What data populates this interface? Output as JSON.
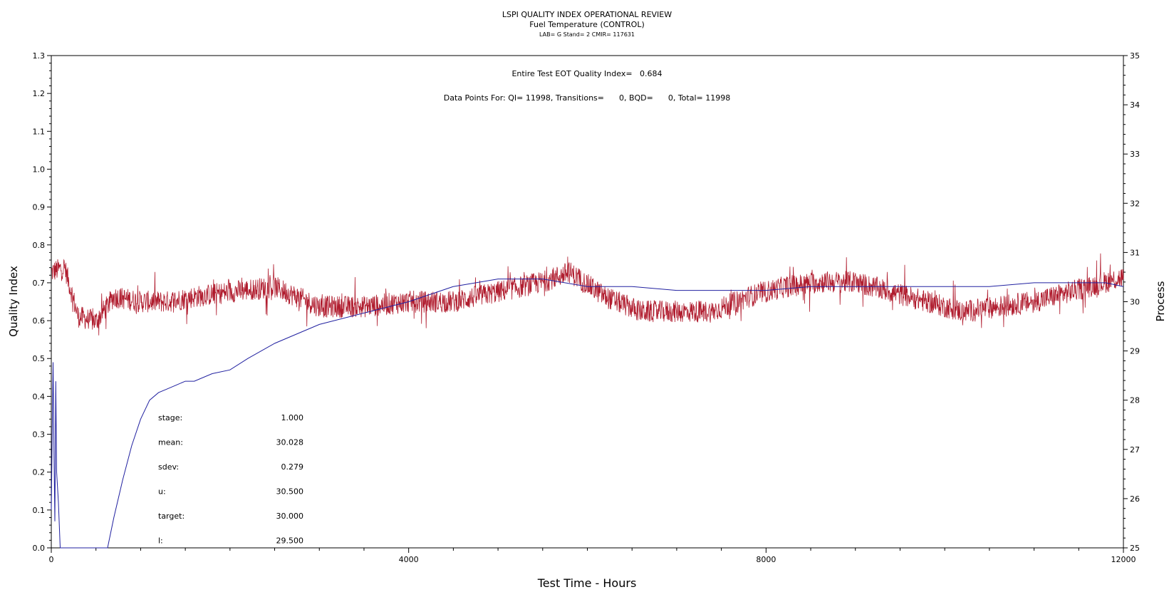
{
  "chart_data": {
    "type": "line",
    "title": "LSPI QUALITY INDEX OPERATIONAL REVIEW",
    "subtitle": "Fuel Temperature (CONTROL)",
    "subtitle2": "LAB= G Stand= 2 CMIR= 117631",
    "annotation_qi": "Entire Test EOT Quality Index=   0.684",
    "annotation_points": "Data Points For: QI= 11998, Transitions=      0, BQD=      0, Total= 11998",
    "xlabel": "Test Time - Hours",
    "ylabel_left": "Quality Index",
    "ylabel_right": "Process",
    "xlim": [
      0,
      12000
    ],
    "ylim_left": [
      0.0,
      1.3
    ],
    "ylim_right": [
      25,
      35
    ],
    "x_ticks": [
      "0",
      "4000",
      "8000",
      "12000"
    ],
    "y_left_ticks": [
      "0.0",
      "0.1",
      "0.2",
      "0.3",
      "0.4",
      "0.5",
      "0.6",
      "0.7",
      "0.8",
      "0.9",
      "1.0",
      "1.1",
      "1.2",
      "1.3"
    ],
    "y_right_ticks": [
      "25",
      "26",
      "27",
      "28",
      "29",
      "30",
      "31",
      "32",
      "33",
      "34",
      "35"
    ],
    "grid": false,
    "stats": [
      {
        "label": "stage:",
        "value": "1.000"
      },
      {
        "label": "mean:",
        "value": "30.028"
      },
      {
        "label": "sdev:",
        "value": "0.279"
      },
      {
        "label": "u:",
        "value": "30.500"
      },
      {
        "label": "target:",
        "value": "30.000"
      },
      {
        "label": "l:",
        "value": "29.500"
      }
    ],
    "series": [
      {
        "axis": "right",
        "color": "#b01c2e",
        "x": [
          0,
          150,
          300,
          500,
          700,
          1000,
          1300,
          1600,
          2000,
          2500,
          3000,
          3500,
          4000,
          4500,
          5000,
          5500,
          5800,
          6200,
          6600,
          7000,
          7400,
          7800,
          8200,
          8600,
          9000,
          9400,
          9800,
          10200,
          10600,
          11000,
          11400,
          11800,
          12000
        ],
        "values": [
          30.6,
          30.7,
          29.7,
          29.6,
          30.1,
          30.0,
          30.0,
          30.1,
          30.2,
          30.3,
          29.9,
          29.9,
          30.0,
          30.0,
          30.2,
          30.4,
          30.6,
          30.1,
          29.8,
          29.8,
          29.8,
          30.1,
          30.3,
          30.4,
          30.4,
          30.2,
          30.0,
          29.8,
          29.9,
          30.0,
          30.2,
          30.4,
          30.5
        ]
      },
      {
        "axis": "left",
        "color": "#2020a0",
        "x": [
          0,
          20,
          30,
          40,
          50,
          60,
          80,
          100,
          630,
          700,
          800,
          900,
          1000,
          1100,
          1200,
          1300,
          1400,
          1500,
          1600,
          1800,
          2000,
          2200,
          2500,
          2800,
          3000,
          3500,
          4000,
          4500,
          5000,
          5500,
          6000,
          6500,
          7000,
          7500,
          8000,
          8500,
          9000,
          9500,
          10000,
          10500,
          11000,
          11500,
          11800,
          12000
        ],
        "values": [
          0.1,
          0.49,
          0.25,
          0.07,
          0.44,
          0.2,
          0.12,
          0.0,
          0.0,
          0.08,
          0.18,
          0.27,
          0.34,
          0.39,
          0.41,
          0.42,
          0.43,
          0.44,
          0.44,
          0.46,
          0.47,
          0.5,
          0.54,
          0.57,
          0.59,
          0.62,
          0.65,
          0.69,
          0.71,
          0.71,
          0.69,
          0.69,
          0.68,
          0.68,
          0.68,
          0.69,
          0.69,
          0.69,
          0.69,
          0.69,
          0.7,
          0.7,
          0.7,
          0.69
        ]
      }
    ]
  }
}
